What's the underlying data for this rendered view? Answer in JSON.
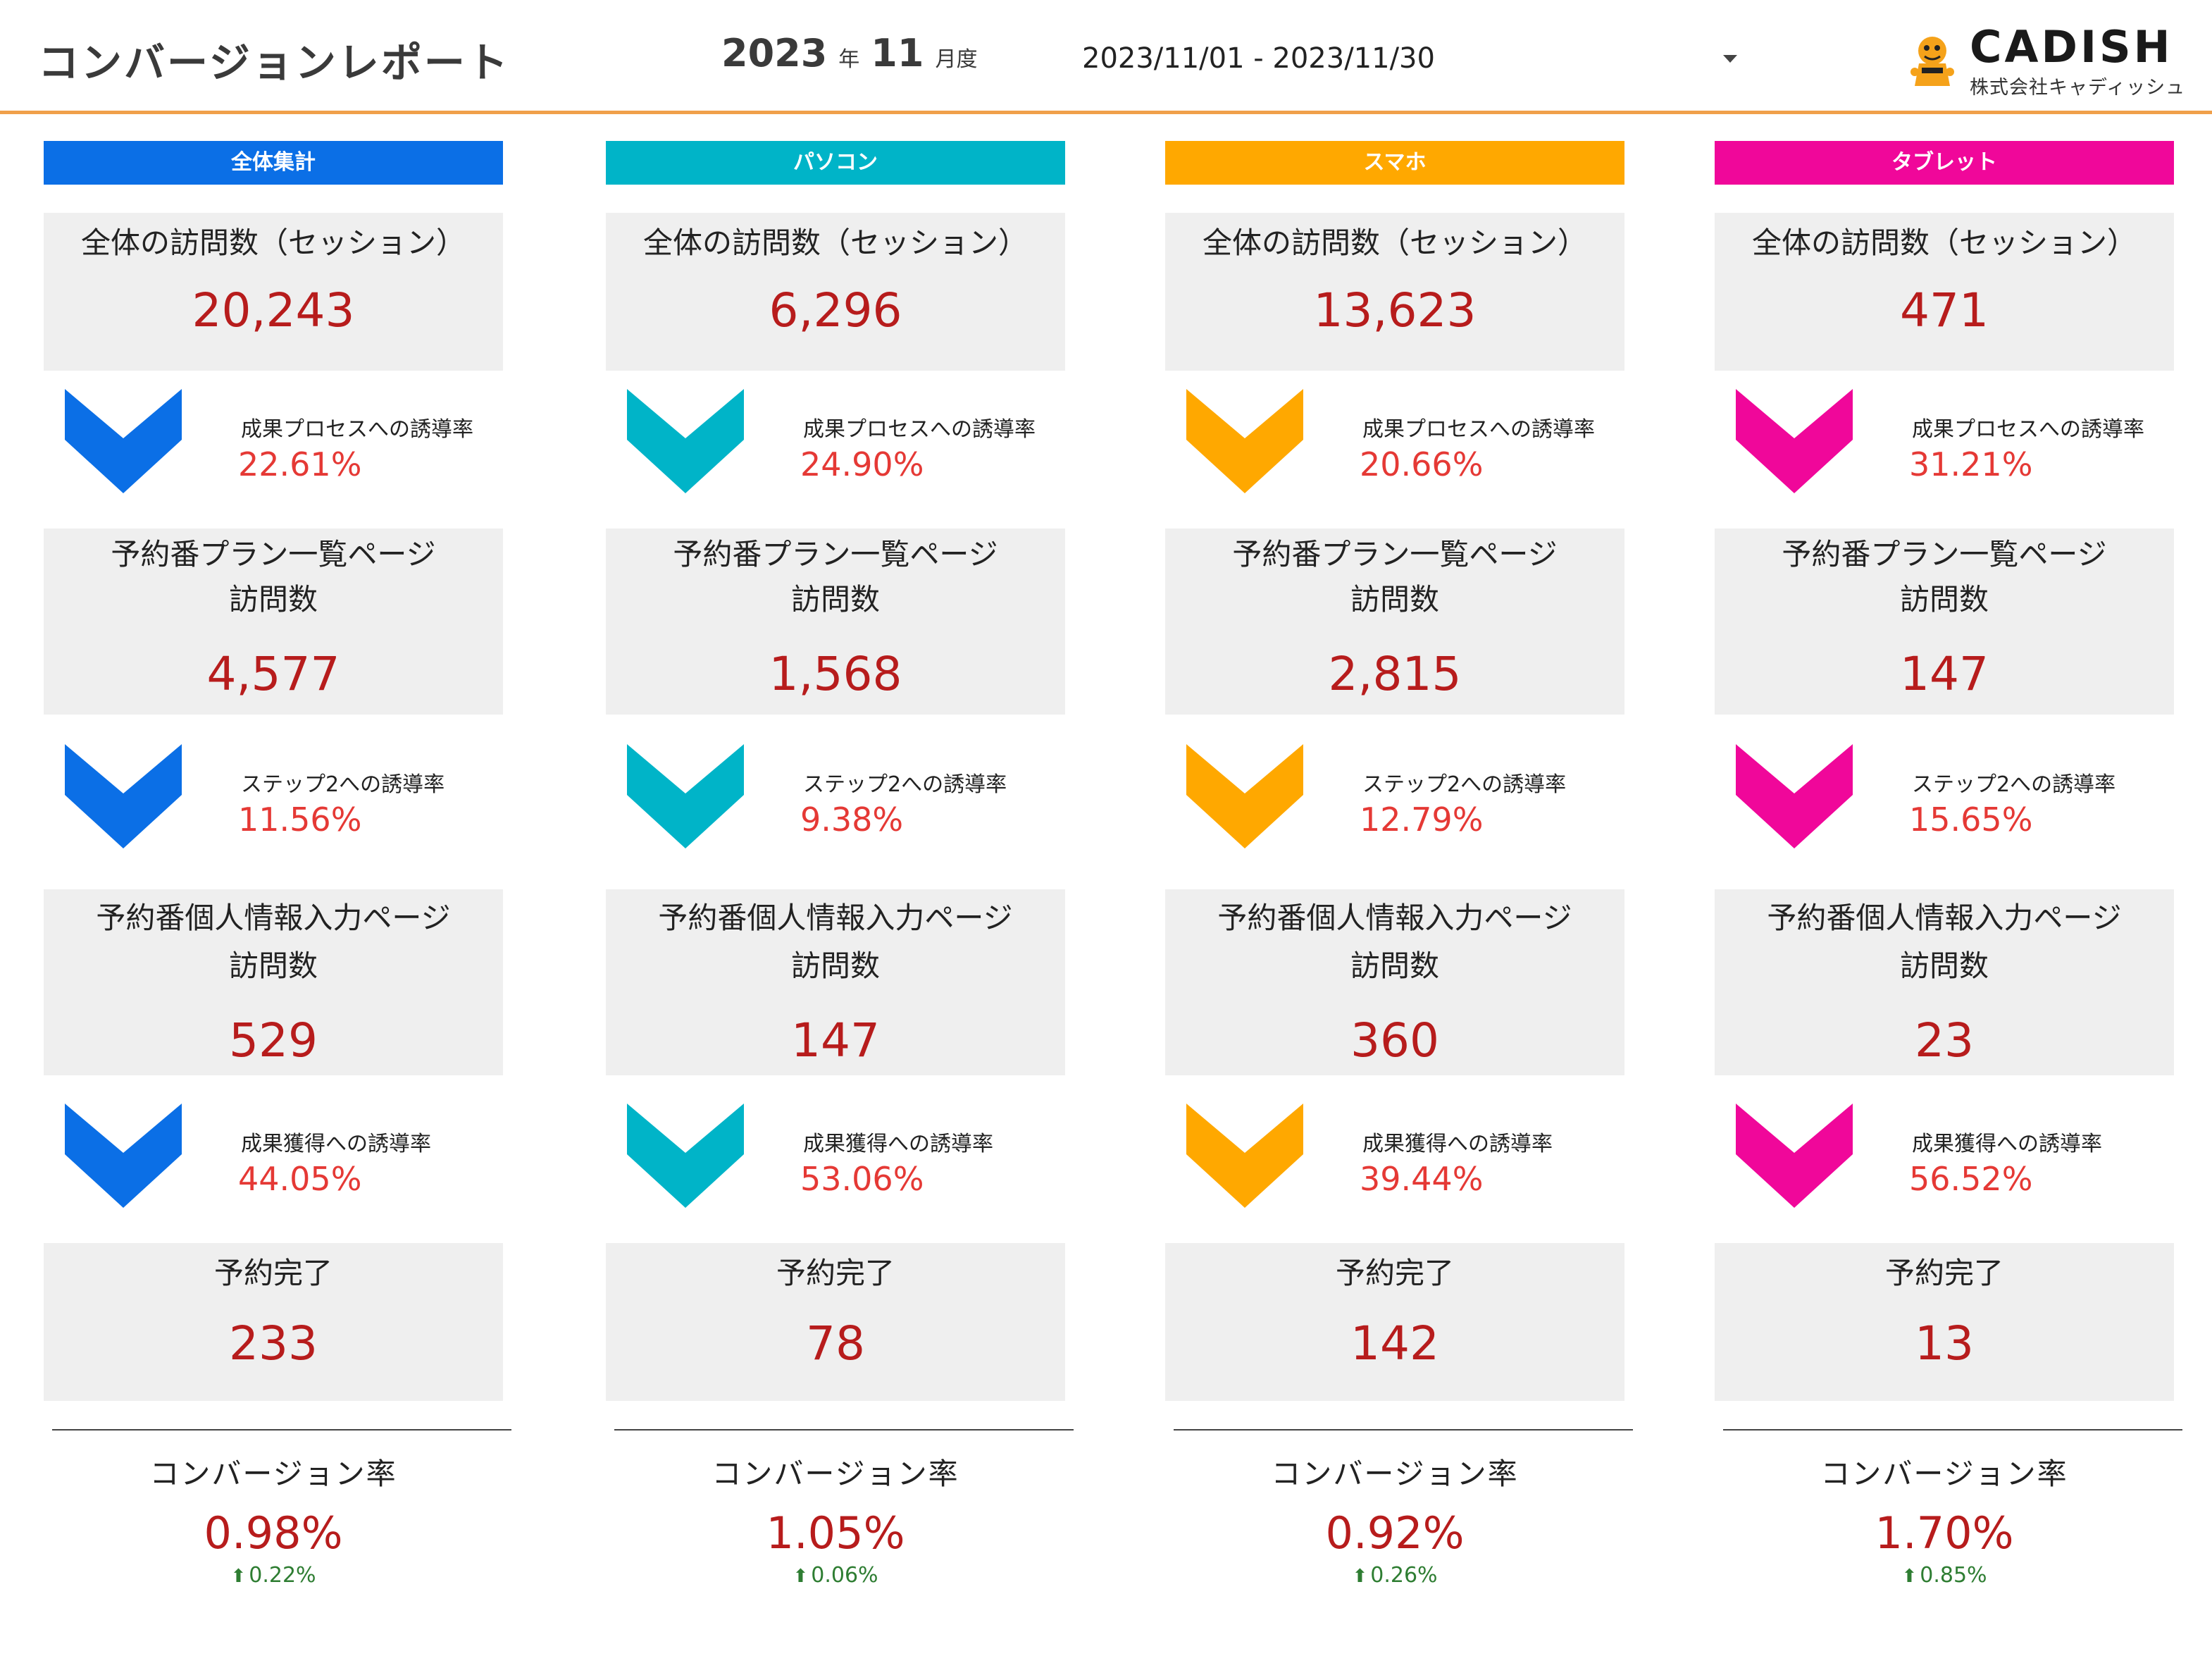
{
  "header": {
    "title": "コンバージョンレポート",
    "year": "2023",
    "year_unit": "年",
    "month": "11",
    "month_unit": "月度",
    "date_range": "2023/11/01 - 2023/11/30"
  },
  "logo": {
    "name": "CADISH",
    "company": "株式会社キャディッシュ",
    "icon": "mascot-icon"
  },
  "columns": [
    {
      "title": "全体集計",
      "color": "#0b6fe6",
      "sessions_label": "全体の訪問数（セッション）",
      "sessions": "20,243",
      "rate1_label": "成果プロセスへの誘導率",
      "rate1": "22.61%",
      "plan_label_1": "予約番プラン一覧ページ",
      "plan_label_2": "訪問数",
      "plan": "4,577",
      "rate2_label": "ステップ2への誘導率",
      "rate2": "11.56%",
      "info_label_1": "予約番個人情報入力ページ",
      "info_label_2": "訪問数",
      "info": "529",
      "rate3_label": "成果獲得への誘導率",
      "rate3": "44.05%",
      "complete_label": "予約完了",
      "complete": "233",
      "cv_label": "コンバージョン率",
      "cv": "0.98%",
      "cv_change": "0.22%"
    },
    {
      "title": "パソコン",
      "color": "#00b4c8",
      "sessions_label": "全体の訪問数（セッション）",
      "sessions": "6,296",
      "rate1_label": "成果プロセスへの誘導率",
      "rate1": "24.90%",
      "plan_label_1": "予約番プラン一覧ページ",
      "plan_label_2": "訪問数",
      "plan": "1,568",
      "rate2_label": "ステップ2への誘導率",
      "rate2": "9.38%",
      "info_label_1": "予約番個人情報入力ページ",
      "info_label_2": "訪問数",
      "info": "147",
      "rate3_label": "成果獲得への誘導率",
      "rate3": "53.06%",
      "complete_label": "予約完了",
      "complete": "78",
      "cv_label": "コンバージョン率",
      "cv": "1.05%",
      "cv_change": "0.06%"
    },
    {
      "title": "スマホ",
      "color": "#ffa800",
      "sessions_label": "全体の訪問数（セッション）",
      "sessions": "13,623",
      "rate1_label": "成果プロセスへの誘導率",
      "rate1": "20.66%",
      "plan_label_1": "予約番プラン一覧ページ",
      "plan_label_2": "訪問数",
      "plan": "2,815",
      "rate2_label": "ステップ2への誘導率",
      "rate2": "12.79%",
      "info_label_1": "予約番個人情報入力ページ",
      "info_label_2": "訪問数",
      "info": "360",
      "rate3_label": "成果獲得への誘導率",
      "rate3": "39.44%",
      "complete_label": "予約完了",
      "complete": "142",
      "cv_label": "コンバージョン率",
      "cv": "0.92%",
      "cv_change": "0.26%"
    },
    {
      "title": "タブレット",
      "color": "#f0079a",
      "sessions_label": "全体の訪問数（セッション）",
      "sessions": "471",
      "rate1_label": "成果プロセスへの誘導率",
      "rate1": "31.21%",
      "plan_label_1": "予約番プラン一覧ページ",
      "plan_label_2": "訪問数",
      "plan": "147",
      "rate2_label": "ステップ2への誘導率",
      "rate2": "15.65%",
      "info_label_1": "予約番個人情報入力ページ",
      "info_label_2": "訪問数",
      "info": "23",
      "rate3_label": "成果獲得への誘導率",
      "rate3": "56.52%",
      "complete_label": "予約完了",
      "complete": "13",
      "cv_label": "コンバージョン率",
      "cv": "1.70%",
      "cv_change": "0.85%"
    }
  ]
}
